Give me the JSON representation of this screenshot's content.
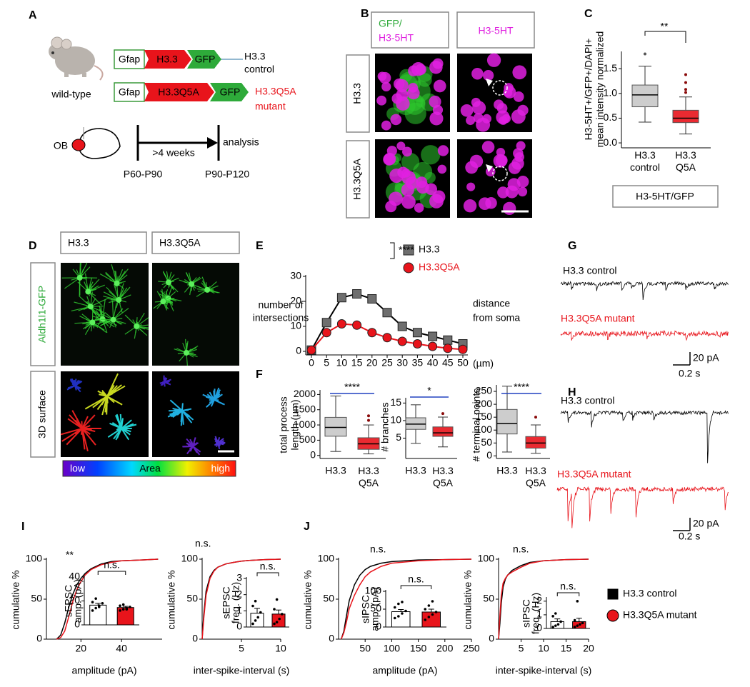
{
  "figure": {
    "A": {
      "letter": "A",
      "mouse": "wild-type",
      "constructs": [
        {
          "promoter": "Gfap",
          "gene": "H3.3",
          "reporter": "GFP",
          "label": [
            "H3.3",
            "control"
          ]
        },
        {
          "promoter": "Gfap",
          "gene": "H3.3Q5A",
          "reporter": "GFP",
          "label": [
            "H3.3Q5A",
            "mutant"
          ]
        }
      ],
      "region": "OB",
      "interval": ">4 weeks",
      "endpoint": "analysis",
      "start": "P60-P90",
      "end": "P90-P120"
    },
    "B": {
      "letter": "B",
      "headers": [
        [
          "GFP/",
          "H3-5HT"
        ],
        [
          "H3-5HT"
        ]
      ],
      "rows": [
        "H3.3",
        "H3.3Q5A"
      ]
    },
    "C": {
      "letter": "C",
      "footer": "H3-5HT/GFP"
    },
    "D": {
      "letter": "D",
      "columns": [
        "H3.3",
        "H3.3Q5A"
      ],
      "rows": [
        "Aldh1l1-GFP",
        "3D surface"
      ],
      "colorbar": [
        "low",
        "Area",
        "high"
      ]
    },
    "E": {
      "letter": "E"
    },
    "F": {
      "letter": "F"
    },
    "G": {
      "letter": "G",
      "traces": [
        "H3.3 control",
        "H3.3Q5A mutant"
      ],
      "scale": [
        "20 pA",
        "0.2 s"
      ]
    },
    "H": {
      "letter": "H",
      "traces": [
        "H3.3 control",
        "H3.3Q5A mutant"
      ],
      "scale": [
        "20 pA",
        "0.2 s"
      ]
    },
    "I": {
      "letter": "I"
    },
    "J": {
      "letter": "J"
    }
  },
  "chart_data": [
    {
      "type": "box",
      "ylabel": [
        "H3-5HT+/GFP+/DAPI+",
        "mean intensity normalized"
      ],
      "categories": [
        "H3.3 control",
        "H3.3 Q5A"
      ],
      "colors": [
        "#c8c8c8",
        "#e8141b"
      ],
      "boxes": [
        {
          "whislo": 0.42,
          "q1": 0.73,
          "med": 0.97,
          "q3": 1.17,
          "whishi": 1.55,
          "outliers": [
            1.8
          ]
        },
        {
          "whislo": 0.18,
          "q1": 0.41,
          "med": 0.5,
          "q3": 0.66,
          "whishi": 0.93,
          "outliers": [
            1.02,
            1.08,
            1.22,
            1.38
          ]
        }
      ],
      "ylim": [
        -0.1,
        1.85
      ],
      "yticks": [
        {
          "value": 0,
          "label": "0.0"
        },
        {
          "value": 0.5,
          "label": "0.5"
        },
        {
          "value": 1,
          "label": "1.0"
        },
        {
          "value": 1.5,
          "label": "1.5"
        }
      ],
      "annotation": "**"
    },
    {
      "type": "line",
      "ylabel": [
        "number of",
        "intersections"
      ],
      "xlabel": [
        "distance",
        "from soma",
        "(µm)"
      ],
      "x": [
        0,
        5,
        10,
        15,
        20,
        25,
        30,
        35,
        40,
        45,
        50
      ],
      "series": [
        {
          "name": "H3.3",
          "color": "#6e6e6e",
          "marker": "square",
          "values": [
            0.5,
            11.5,
            21.5,
            23,
            21,
            15.5,
            10,
            7.5,
            6,
            4.5,
            3
          ]
        },
        {
          "name": "H3.3Q5A",
          "color": "#e8141b",
          "marker": "circle",
          "values": [
            0.5,
            7.5,
            11,
            10.5,
            7.5,
            5.5,
            4,
            3,
            2,
            1.2,
            0.8
          ]
        }
      ],
      "xlim": [
        0,
        50
      ],
      "ylim": [
        0,
        30
      ],
      "xticks": [
        0,
        5,
        10,
        15,
        20,
        25,
        30,
        35,
        40,
        45,
        50
      ],
      "yticks": [
        0,
        10,
        20,
        30
      ],
      "annotation": "****"
    },
    {
      "type": "box",
      "ylabel": [
        "total process",
        "length (µm)"
      ],
      "categories": [
        "H3.3",
        "H3.3 Q5A"
      ],
      "colors": [
        "#c8c8c8",
        "#e8141b"
      ],
      "boxes": [
        {
          "whislo": 130,
          "q1": 630,
          "med": 920,
          "q3": 1250,
          "whishi": 1950,
          "outliers": []
        },
        {
          "whislo": 50,
          "q1": 200,
          "med": 380,
          "q3": 580,
          "whishi": 1000,
          "outliers": [
            1150,
            1300
          ]
        }
      ],
      "ylim": [
        -100,
        2150
      ],
      "yticks": [
        0,
        500,
        1000,
        1500,
        2000
      ],
      "annotation": "****"
    },
    {
      "type": "box",
      "ylabel": [
        "# branches"
      ],
      "categories": [
        "H3.3",
        "H3.3 Q5A"
      ],
      "colors": [
        "#c8c8c8",
        "#e8141b"
      ],
      "boxes": [
        {
          "whislo": 3.5,
          "q1": 7.5,
          "med": 9,
          "q3": 10.8,
          "whishi": 14.5,
          "outliers": []
        },
        {
          "whislo": 2.5,
          "q1": 5.5,
          "med": 6.5,
          "q3": 8.2,
          "whishi": 11,
          "outliers": [
            12
          ]
        }
      ],
      "ylim": [
        -0.8,
        16.5
      ],
      "yticks": [
        5,
        10,
        15
      ],
      "annotation": "*"
    },
    {
      "type": "box",
      "ylabel": [
        "# terminal points"
      ],
      "categories": [
        "H3.3",
        "H3.3 Q5A"
      ],
      "colors": [
        "#c8c8c8",
        "#e8141b"
      ],
      "boxes": [
        {
          "whislo": 15,
          "q1": 85,
          "med": 125,
          "q3": 180,
          "whishi": 270,
          "outliers": []
        },
        {
          "whislo": 10,
          "q1": 30,
          "med": 50,
          "q3": 75,
          "whishi": 120,
          "outliers": [
            150
          ]
        }
      ],
      "ylim": [
        -10,
        275
      ],
      "yticks": [
        0,
        50,
        100,
        150,
        200,
        250
      ],
      "annotation": "****"
    },
    {
      "type": "cumulative",
      "ylabel": "cumulative %",
      "xlabel": "amplitude (pA)",
      "xlim": [
        3,
        60
      ],
      "ylim": [
        0,
        100
      ],
      "xticks": [
        20,
        40
      ],
      "yticks": [
        0,
        50,
        100
      ],
      "annotation": "**",
      "x": [
        8,
        10,
        12,
        14,
        16,
        18,
        20,
        22,
        25,
        30,
        35,
        40,
        50,
        58
      ],
      "series": [
        {
          "name": "H3.3 control",
          "color": "#000000",
          "values": [
            0,
            5,
            20,
            40,
            56,
            68,
            76,
            82,
            88,
            94,
            97,
            98,
            99,
            100
          ]
        },
        {
          "name": "H3.3Q5A mutant",
          "color": "#e8141b",
          "values": [
            0,
            2,
            10,
            28,
            47,
            62,
            72,
            80,
            87,
            93,
            96,
            98,
            99,
            100
          ]
        }
      ],
      "inset": {
        "type": "bar",
        "ylabel": [
          "sEPSC",
          "amp. (pA)"
        ],
        "ylim": [
          0,
          40
        ],
        "yticks": [
          0,
          20,
          40
        ],
        "values": [
          16.5,
          14.5
        ],
        "errors": [
          1.5,
          1
        ],
        "colors": [
          "#ffffff",
          "#e8141b"
        ],
        "points": [
          [
            12,
            14,
            16,
            18,
            19,
            22,
            15
          ],
          [
            12,
            13,
            14,
            15,
            16,
            17,
            13
          ]
        ],
        "annotation": "n.s."
      }
    },
    {
      "type": "cumulative",
      "ylabel": "cumulative %",
      "xlabel": "inter-spike-interval (s)",
      "xlim": [
        0,
        10
      ],
      "ylim": [
        0,
        100
      ],
      "xticks": [
        5,
        10
      ],
      "yticks": [
        0,
        50,
        100
      ],
      "annotation": "n.s.",
      "x": [
        0,
        0.2,
        0.5,
        1,
        1.5,
        2,
        3,
        4,
        5,
        6,
        8,
        10
      ],
      "series": [
        {
          "color": "#000000",
          "values": [
            0,
            30,
            60,
            78,
            86,
            90,
            94,
            96,
            97.5,
            98.5,
            99.5,
            100
          ]
        },
        {
          "color": "#e8141b",
          "values": [
            0,
            25,
            55,
            76,
            85,
            90,
            94,
            96,
            97.5,
            98.5,
            99.5,
            100
          ]
        }
      ],
      "inset": {
        "type": "bar",
        "ylabel": [
          "sEPSC",
          "freq. (Hz)"
        ],
        "ylim": [
          0,
          3
        ],
        "yticks": [
          0,
          1,
          2,
          3
        ],
        "values": [
          0.85,
          0.8
        ],
        "errors": [
          0.3,
          0.25
        ],
        "colors": [
          "#ffffff",
          "#e8141b"
        ],
        "points": [
          [
            0.2,
            0.4,
            0.6,
            0.9,
            1.3,
            1.6
          ],
          [
            0.2,
            0.3,
            0.5,
            0.8,
            1.1,
            1.7
          ]
        ],
        "annotation": "n.s."
      }
    },
    {
      "type": "cumulative",
      "ylabel": "cumulative %",
      "xlabel": "amplitude (pA)",
      "xlim": [
        0,
        250
      ],
      "ylim": [
        0,
        100
      ],
      "xticks": [
        50,
        100,
        150,
        200,
        250
      ],
      "yticks": [
        0,
        50,
        100
      ],
      "annotation": "n.s.",
      "x": [
        5,
        10,
        15,
        20,
        30,
        40,
        50,
        60,
        80,
        100,
        150,
        200,
        250
      ],
      "series": [
        {
          "color": "#000000",
          "values": [
            0,
            10,
            30,
            48,
            68,
            80,
            87,
            91,
            95,
            97,
            99,
            99.5,
            100
          ]
        },
        {
          "color": "#e8141b",
          "values": [
            0,
            8,
            22,
            38,
            55,
            68,
            78,
            84,
            91,
            95,
            98,
            99.5,
            100
          ]
        }
      ],
      "inset": {
        "type": "bar",
        "ylabel": [
          "sIPSC",
          "amp. (pA)"
        ],
        "ylim": [
          0,
          100
        ],
        "yticks": [
          0,
          50,
          100
        ],
        "values": [
          43,
          42
        ],
        "errors": [
          6,
          8
        ],
        "colors": [
          "#ffffff",
          "#e8141b"
        ],
        "points": [
          [
            25,
            30,
            38,
            45,
            55,
            65,
            70
          ],
          [
            20,
            28,
            35,
            42,
            50,
            60,
            72
          ]
        ],
        "annotation": "n.s."
      }
    },
    {
      "type": "cumulative",
      "ylabel": "cumulative %",
      "xlabel": "inter-spike-interval (s)",
      "xlim": [
        0,
        20
      ],
      "ylim": [
        0,
        100
      ],
      "xticks": [
        5,
        10,
        15,
        20
      ],
      "yticks": [
        0,
        50,
        100
      ],
      "annotation": "n.s.",
      "x": [
        0,
        0.3,
        0.6,
        1,
        1.5,
        2,
        3,
        4,
        5,
        7,
        10,
        15,
        20
      ],
      "series": [
        {
          "color": "#000000",
          "values": [
            0,
            20,
            45,
            65,
            75,
            80,
            86,
            89,
            92,
            96,
            98,
            99.5,
            100
          ]
        },
        {
          "color": "#e8141b",
          "values": [
            0,
            30,
            55,
            70,
            76,
            80,
            84,
            87,
            90,
            95,
            98,
            99.5,
            100
          ]
        }
      ],
      "inset": {
        "type": "bar",
        "ylabel": [
          "sIPSC",
          "freq. (Hz)"
        ],
        "ylim": [
          0,
          2.2
        ],
        "yticks": [
          0,
          1,
          2
        ],
        "values": [
          0.5,
          0.5
        ],
        "errors": [
          0.2,
          0.25
        ],
        "colors": [
          "#ffffff",
          "#e8141b"
        ],
        "points": [
          [
            0.1,
            0.2,
            0.3,
            0.5,
            0.9,
            1.1
          ],
          [
            0.1,
            0.2,
            0.3,
            0.4,
            0.6,
            2
          ]
        ],
        "annotation": "n.s."
      }
    }
  ]
}
